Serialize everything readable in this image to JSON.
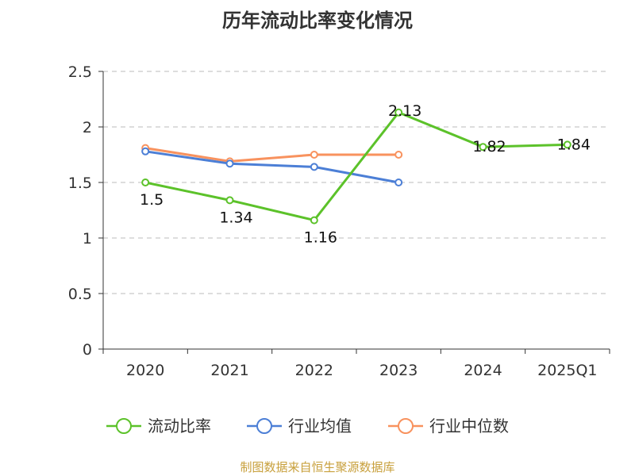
{
  "chart_data": {
    "type": "line",
    "title": "历年流动比率变化情况",
    "categories": [
      "2020",
      "2021",
      "2022",
      "2023",
      "2024",
      "2025Q1"
    ],
    "ylim": [
      0,
      2.5
    ],
    "yticks": [
      "0",
      "0.5",
      "1",
      "1.5",
      "2",
      "2.5"
    ],
    "grid": true,
    "legend_position": "bottom",
    "series": [
      {
        "name": "流动比率",
        "color": "#5cc22a",
        "values": [
          1.5,
          1.34,
          1.16,
          2.13,
          1.82,
          1.84
        ],
        "labels": [
          "1.5",
          "1.34",
          "1.16",
          "2.13",
          "1.82",
          "1.84"
        ]
      },
      {
        "name": "行业均值",
        "color": "#4c7fd6",
        "values": [
          1.78,
          1.67,
          1.64,
          1.5,
          null,
          null
        ]
      },
      {
        "name": "行业中位数",
        "color": "#f8925e",
        "values": [
          1.81,
          1.69,
          1.75,
          1.75,
          null,
          null
        ]
      }
    ]
  },
  "source": "制图数据来自恒生聚源数据库"
}
